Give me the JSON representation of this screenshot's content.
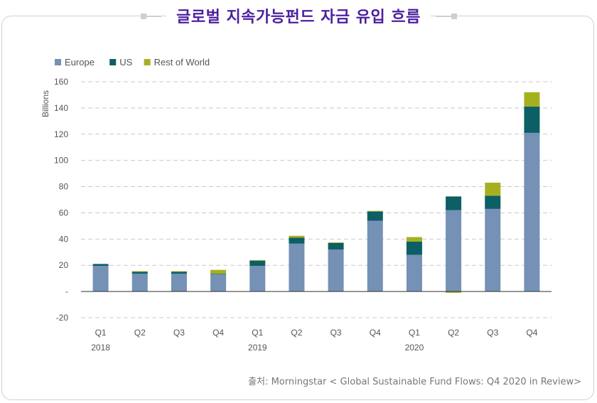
{
  "title": "글로벌 지속가능펀드 자금 유입 흐름",
  "source": "출처: Morningstar < Global Sustainable Fund Flows: Q4 2020 in Review>",
  "colors": {
    "europe": "#7591b5",
    "us": "#0b5f65",
    "row": "#a6b01e",
    "title": "#4b1fa0"
  },
  "chart_data": {
    "type": "bar",
    "stacked": true,
    "ylabel": "Billions",
    "ylim": [
      -20,
      160
    ],
    "yticks": [
      -20,
      0,
      20,
      40,
      60,
      80,
      100,
      120,
      140,
      160
    ],
    "ytick_labels": [
      "-20",
      "-",
      "20",
      "40",
      "60",
      "80",
      "100",
      "120",
      "140",
      "160"
    ],
    "grid": true,
    "legend_position": "top-left",
    "categories": [
      "Q1",
      "Q2",
      "Q3",
      "Q4",
      "Q1",
      "Q2",
      "Q3",
      "Q4",
      "Q1",
      "Q2",
      "Q3",
      "Q4"
    ],
    "year_labels": [
      "2018",
      "",
      "",
      "",
      "2019",
      "",
      "",
      "",
      "2020",
      "",
      "",
      ""
    ],
    "series": [
      {
        "name": "Europe",
        "color": "#7591b5",
        "values": [
          19.5,
          13.5,
          13.5,
          13,
          19.5,
          36.5,
          32,
          54,
          28,
          62,
          63,
          121
        ]
      },
      {
        "name": "US",
        "color": "#0b5f65",
        "values": [
          1.5,
          1.5,
          1.5,
          0.5,
          4,
          4.5,
          5,
          7,
          10,
          10.5,
          10,
          20
        ]
      },
      {
        "name": "Rest of World",
        "color": "#a6b01e",
        "values": [
          0,
          0.5,
          0.5,
          3,
          0.5,
          1.5,
          0.5,
          0.5,
          3.5,
          -1,
          10,
          11
        ]
      }
    ]
  }
}
